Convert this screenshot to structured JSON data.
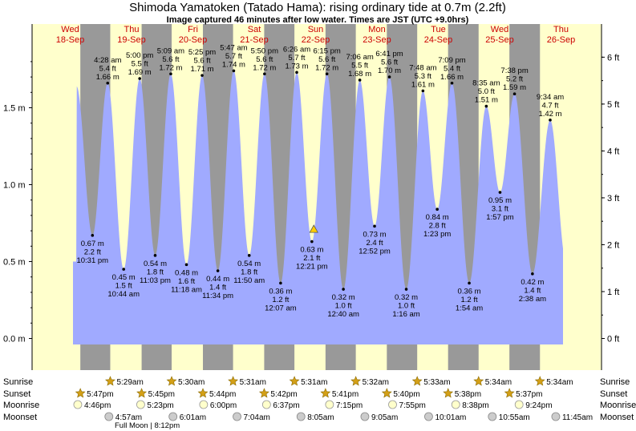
{
  "chart_data": {
    "type": "area",
    "title": "Shimoda Yamatoken (Tatado Hama): rising  ordinary tide at 0.7m (2.2ft)",
    "subtitle": "Image captured 46 minutes after low water. Times are JST (UTC +9.0hrs)",
    "days": [
      {
        "dow": "Wed",
        "date": "18-Sep"
      },
      {
        "dow": "Thu",
        "date": "19-Sep"
      },
      {
        "dow": "Fri",
        "date": "20-Sep"
      },
      {
        "dow": "Sat",
        "date": "21-Sep"
      },
      {
        "dow": "Sun",
        "date": "22-Sep"
      },
      {
        "dow": "Mon",
        "date": "23-Sep"
      },
      {
        "dow": "Tue",
        "date": "24-Sep"
      },
      {
        "dow": "Wed",
        "date": "25-Sep"
      },
      {
        "dow": "Thu",
        "date": "26-Sep"
      }
    ],
    "y_axis_left": {
      "unit": "m",
      "ticks": [
        "0.0 m",
        "0.5 m",
        "1.0 m",
        "1.5 m"
      ],
      "values": [
        0,
        0.5,
        1.0,
        1.5
      ]
    },
    "y_axis_right": {
      "unit": "ft",
      "ticks": [
        "0 ft",
        "1 ft",
        "2 ft",
        "3 ft",
        "4 ft",
        "5 ft",
        "6 ft"
      ],
      "values": [
        0,
        1,
        2,
        3,
        4,
        5,
        6
      ]
    },
    "ylim_m": [
      -0.14,
      1.89
    ],
    "series_color": "#a0aaff",
    "extremes": [
      {
        "type": "low",
        "m": "0.67 m",
        "ft": "2.2 ft",
        "time": "10:31 pm",
        "v": 0.67,
        "day": 0,
        "hour": 22.52
      },
      {
        "type": "high",
        "m": "1.66 m",
        "ft": "5.4 ft",
        "time": "4:28 am",
        "v": 1.66,
        "day": 1,
        "hour": 4.47
      },
      {
        "type": "low",
        "m": "0.45 m",
        "ft": "1.5 ft",
        "time": "10:44 am",
        "v": 0.45,
        "day": 1,
        "hour": 10.73
      },
      {
        "type": "high",
        "m": "1.69 m",
        "ft": "5.5 ft",
        "time": "5:00 pm",
        "v": 1.69,
        "day": 1,
        "hour": 17.0
      },
      {
        "type": "low",
        "m": "0.54 m",
        "ft": "1.8 ft",
        "time": "11:03 pm",
        "v": 0.54,
        "day": 1,
        "hour": 23.05
      },
      {
        "type": "high",
        "m": "1.72 m",
        "ft": "5.6 ft",
        "time": "5:09 am",
        "v": 1.72,
        "day": 2,
        "hour": 5.15
      },
      {
        "type": "low",
        "m": "0.48 m",
        "ft": "1.6 ft",
        "time": "11:18 am",
        "v": 0.48,
        "day": 2,
        "hour": 11.3
      },
      {
        "type": "high",
        "m": "1.71 m",
        "ft": "5.6 ft",
        "time": "5:25 pm",
        "v": 1.71,
        "day": 2,
        "hour": 17.42
      },
      {
        "type": "low",
        "m": "0.44 m",
        "ft": "1.4 ft",
        "time": "11:34 pm",
        "v": 0.44,
        "day": 2,
        "hour": 23.57
      },
      {
        "type": "high",
        "m": "1.74 m",
        "ft": "5.7 ft",
        "time": "5:47 am",
        "v": 1.74,
        "day": 3,
        "hour": 5.78
      },
      {
        "type": "low",
        "m": "0.54 m",
        "ft": "1.8 ft",
        "time": "11:50 am",
        "v": 0.54,
        "day": 3,
        "hour": 11.83
      },
      {
        "type": "high",
        "m": "1.72 m",
        "ft": "5.6 ft",
        "time": "5:50 pm",
        "v": 1.72,
        "day": 3,
        "hour": 17.83
      },
      {
        "type": "low",
        "m": "0.36 m",
        "ft": "1.2 ft",
        "time": "12:07 am",
        "v": 0.36,
        "day": 4,
        "hour": 0.12
      },
      {
        "type": "high",
        "m": "1.73 m",
        "ft": "5.7 ft",
        "time": "6:26 am",
        "v": 1.73,
        "day": 4,
        "hour": 6.43
      },
      {
        "type": "low",
        "m": "0.63 m",
        "ft": "2.1 ft",
        "time": "12:21 pm",
        "v": 0.63,
        "day": 4,
        "hour": 12.35
      },
      {
        "type": "high",
        "m": "1.72 m",
        "ft": "5.6 ft",
        "time": "6:15 pm",
        "v": 1.72,
        "day": 4,
        "hour": 18.25
      },
      {
        "type": "low",
        "m": "0.32 m",
        "ft": "1.0 ft",
        "time": "12:40 am",
        "v": 0.32,
        "day": 5,
        "hour": 0.67
      },
      {
        "type": "high",
        "m": "1.68 m",
        "ft": "5.5 ft",
        "time": "7:06 am",
        "v": 1.68,
        "day": 5,
        "hour": 7.1
      },
      {
        "type": "low",
        "m": "0.73 m",
        "ft": "2.4 ft",
        "time": "12:52 pm",
        "v": 0.73,
        "day": 5,
        "hour": 12.87
      },
      {
        "type": "high",
        "m": "1.70 m",
        "ft": "5.6 ft",
        "time": "6:41 pm",
        "v": 1.7,
        "day": 5,
        "hour": 18.68
      },
      {
        "type": "low",
        "m": "0.32 m",
        "ft": "1.0 ft",
        "time": "1:16 am",
        "v": 0.32,
        "day": 6,
        "hour": 1.27
      },
      {
        "type": "high",
        "m": "1.61 m",
        "ft": "5.3 ft",
        "time": "7:48 am",
        "v": 1.61,
        "day": 6,
        "hour": 7.8
      },
      {
        "type": "low",
        "m": "0.84 m",
        "ft": "2.8 ft",
        "time": "1:23 pm",
        "v": 0.84,
        "day": 6,
        "hour": 13.38
      },
      {
        "type": "high",
        "m": "1.66 m",
        "ft": "5.4 ft",
        "time": "7:09 pm",
        "v": 1.66,
        "day": 6,
        "hour": 19.15
      },
      {
        "type": "low",
        "m": "0.36 m",
        "ft": "1.2 ft",
        "time": "1:54 am",
        "v": 0.36,
        "day": 7,
        "hour": 1.9
      },
      {
        "type": "high",
        "m": "1.51 m",
        "ft": "5.0 ft",
        "time": "8:35 am",
        "v": 1.51,
        "day": 7,
        "hour": 8.58
      },
      {
        "type": "low",
        "m": "0.95 m",
        "ft": "3.1 ft",
        "time": "1:57 pm",
        "v": 0.95,
        "day": 7,
        "hour": 13.95
      },
      {
        "type": "high",
        "m": "1.59 m",
        "ft": "5.2 ft",
        "time": "7:38 pm",
        "v": 1.59,
        "day": 7,
        "hour": 19.63
      },
      {
        "type": "low",
        "m": "0.42 m",
        "ft": "1.4 ft",
        "time": "2:38 am",
        "v": 0.42,
        "day": 8,
        "hour": 2.63
      },
      {
        "type": "high",
        "m": "1.42 m",
        "ft": "4.7 ft",
        "time": "9:34 am",
        "v": 1.42,
        "day": 8,
        "hour": 9.57
      }
    ],
    "current": {
      "v": 0.7,
      "day": 4,
      "hour": 13.1
    },
    "astro": {
      "row_labels": [
        "Sunrise",
        "Sunset",
        "Moonrise",
        "Moonset"
      ],
      "sunrise": [
        {
          "time": "5:29am",
          "day": 1,
          "hour": 5.48
        },
        {
          "time": "5:30am",
          "day": 2,
          "hour": 5.5
        },
        {
          "time": "5:31am",
          "day": 3,
          "hour": 5.52
        },
        {
          "time": "5:31am",
          "day": 4,
          "hour": 5.52
        },
        {
          "time": "5:32am",
          "day": 5,
          "hour": 5.53
        },
        {
          "time": "5:33am",
          "day": 6,
          "hour": 5.55
        },
        {
          "time": "5:34am",
          "day": 7,
          "hour": 5.57
        },
        {
          "time": "5:34am",
          "day": 8,
          "hour": 5.57
        }
      ],
      "sunset": [
        {
          "time": "5:47pm",
          "day": 0,
          "hour": 17.78
        },
        {
          "time": "5:45pm",
          "day": 1,
          "hour": 17.75
        },
        {
          "time": "5:44pm",
          "day": 2,
          "hour": 17.73
        },
        {
          "time": "5:42pm",
          "day": 3,
          "hour": 17.7
        },
        {
          "time": "5:41pm",
          "day": 4,
          "hour": 17.68
        },
        {
          "time": "5:40pm",
          "day": 5,
          "hour": 17.67
        },
        {
          "time": "5:38pm",
          "day": 6,
          "hour": 17.63
        },
        {
          "time": "5:37pm",
          "day": 7,
          "hour": 17.62
        }
      ],
      "moonrise": [
        {
          "time": "4:46pm",
          "day": 0,
          "hour": 16.77
        },
        {
          "time": "5:23pm",
          "day": 1,
          "hour": 17.38
        },
        {
          "time": "6:00pm",
          "day": 2,
          "hour": 18.0
        },
        {
          "time": "6:37pm",
          "day": 3,
          "hour": 18.62
        },
        {
          "time": "7:15pm",
          "day": 4,
          "hour": 19.25
        },
        {
          "time": "7:55pm",
          "day": 5,
          "hour": 19.92
        },
        {
          "time": "8:38pm",
          "day": 6,
          "hour": 20.63
        },
        {
          "time": "9:24pm",
          "day": 7,
          "hour": 21.4
        }
      ],
      "moonset": [
        {
          "time": "4:57am",
          "day": 1,
          "hour": 4.95
        },
        {
          "time": "6:01am",
          "day": 2,
          "hour": 6.02
        },
        {
          "time": "7:04am",
          "day": 3,
          "hour": 7.07
        },
        {
          "time": "8:05am",
          "day": 4,
          "hour": 8.08
        },
        {
          "time": "9:05am",
          "day": 5,
          "hour": 9.08
        },
        {
          "time": "10:01am",
          "day": 6,
          "hour": 10.02
        },
        {
          "time": "10:55am",
          "day": 7,
          "hour": 10.92
        },
        {
          "time": "11:45am",
          "day": 8,
          "hour": 11.75
        }
      ],
      "moon_phase": {
        "label": "Full Moon",
        "time": "8:12pm"
      }
    }
  }
}
